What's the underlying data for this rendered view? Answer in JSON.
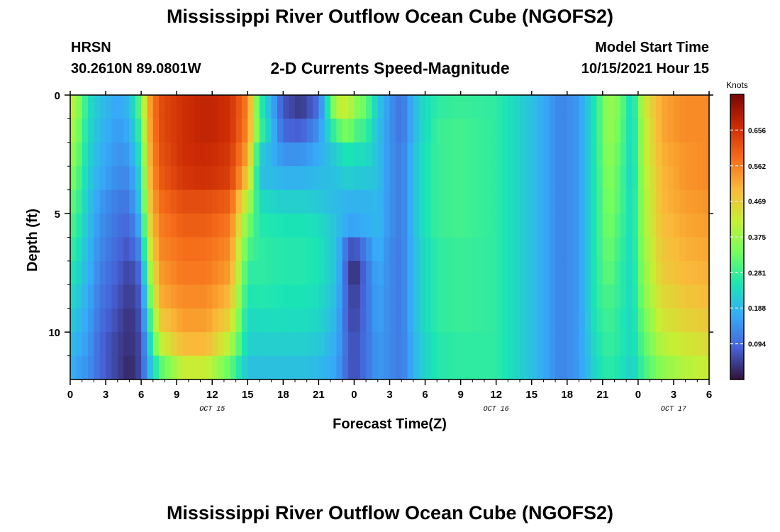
{
  "header": {
    "title": "Mississippi River Outflow Ocean Cube (NGOFS2)",
    "station": "HRSN",
    "coords": "30.2610N  89.0801W",
    "subtitle": "2-D Currents Speed-Magnitude",
    "model_start_label": "Model Start Time",
    "model_start_value": "10/15/2021 Hour 15"
  },
  "footer": {
    "title": "Mississippi River Outflow Ocean Cube (NGOFS2)"
  },
  "chart_data": {
    "type": "heatmap",
    "xlabel": "Forecast Time(Z)",
    "ylabel": "Depth (ft)",
    "colorbar_label": "Knots",
    "x_ticks": [
      "0",
      "3",
      "6",
      "9",
      "12",
      "15",
      "18",
      "21",
      "0",
      "3",
      "6",
      "9",
      "12",
      "15",
      "18",
      "21",
      "0",
      "3",
      "6"
    ],
    "date_labels": [
      {
        "label": "OCT 15",
        "at_hour": 12
      },
      {
        "label": "OCT 16",
        "at_hour": 36
      },
      {
        "label": "OCT 17",
        "at_hour": 51
      }
    ],
    "x_range_hours": [
      0,
      54
    ],
    "y_ticks": [
      "0",
      "5",
      "10"
    ],
    "y_range_ft": [
      0,
      12
    ],
    "colorbar_ticks": [
      "0.656",
      "0.562",
      "0.469",
      "0.375",
      "0.281",
      "0.188",
      "0.094"
    ],
    "colorbar_range": [
      0,
      0.75
    ],
    "colormap": [
      "#30123b",
      "#4662d7",
      "#36aaf9",
      "#1ae4b6",
      "#72fe5e",
      "#c7ef34",
      "#faba39",
      "#f66b19",
      "#cb2a04",
      "#7a0403"
    ],
    "depths_ft": [
      0,
      1,
      2,
      3,
      4,
      5,
      6,
      7,
      8,
      9,
      10,
      11
    ],
    "hour_keyframes": [
      0,
      0.5,
      1.5,
      2.5,
      4,
      5,
      6,
      6.5,
      7.5,
      9.5,
      11.5,
      13.5,
      15,
      16,
      18,
      19.5,
      21,
      22.5,
      23.5,
      24,
      25,
      26,
      27,
      28,
      29.5,
      31,
      33,
      36,
      39,
      41.5,
      43,
      44.5,
      45.5,
      46.5,
      47.5,
      48.5,
      50,
      52,
      54
    ],
    "speed_knots": [
      [
        0.42,
        0.38,
        0.25,
        0.2,
        0.16,
        0.19,
        0.33,
        0.5,
        0.62,
        0.66,
        0.68,
        0.66,
        0.56,
        0.28,
        0.07,
        0.04,
        0.1,
        0.4,
        0.42,
        0.36,
        0.32,
        0.21,
        0.14,
        0.1,
        0.22,
        0.27,
        0.28,
        0.27,
        0.2,
        0.12,
        0.15,
        0.27,
        0.38,
        0.33,
        0.22,
        0.42,
        0.52,
        0.55,
        0.55
      ],
      [
        0.4,
        0.36,
        0.24,
        0.19,
        0.15,
        0.17,
        0.3,
        0.49,
        0.62,
        0.66,
        0.68,
        0.66,
        0.55,
        0.3,
        0.09,
        0.08,
        0.14,
        0.3,
        0.35,
        0.3,
        0.28,
        0.2,
        0.14,
        0.1,
        0.22,
        0.28,
        0.29,
        0.27,
        0.2,
        0.12,
        0.15,
        0.27,
        0.38,
        0.32,
        0.22,
        0.4,
        0.52,
        0.55,
        0.55
      ],
      [
        0.38,
        0.34,
        0.23,
        0.18,
        0.14,
        0.15,
        0.27,
        0.48,
        0.61,
        0.66,
        0.67,
        0.65,
        0.52,
        0.22,
        0.14,
        0.14,
        0.17,
        0.22,
        0.26,
        0.24,
        0.24,
        0.2,
        0.14,
        0.11,
        0.23,
        0.28,
        0.29,
        0.27,
        0.2,
        0.12,
        0.15,
        0.27,
        0.37,
        0.31,
        0.22,
        0.4,
        0.51,
        0.54,
        0.55
      ],
      [
        0.35,
        0.32,
        0.22,
        0.17,
        0.13,
        0.13,
        0.24,
        0.47,
        0.6,
        0.65,
        0.66,
        0.64,
        0.48,
        0.2,
        0.18,
        0.18,
        0.19,
        0.2,
        0.22,
        0.21,
        0.21,
        0.2,
        0.14,
        0.11,
        0.23,
        0.28,
        0.29,
        0.27,
        0.2,
        0.12,
        0.15,
        0.27,
        0.36,
        0.3,
        0.22,
        0.39,
        0.5,
        0.54,
        0.55
      ],
      [
        0.32,
        0.3,
        0.21,
        0.15,
        0.11,
        0.11,
        0.22,
        0.45,
        0.58,
        0.62,
        0.62,
        0.6,
        0.4,
        0.24,
        0.22,
        0.22,
        0.21,
        0.19,
        0.18,
        0.18,
        0.18,
        0.19,
        0.14,
        0.11,
        0.23,
        0.28,
        0.29,
        0.27,
        0.2,
        0.12,
        0.15,
        0.27,
        0.35,
        0.3,
        0.23,
        0.38,
        0.5,
        0.53,
        0.54
      ],
      [
        0.3,
        0.28,
        0.2,
        0.14,
        0.1,
        0.09,
        0.18,
        0.42,
        0.56,
        0.6,
        0.6,
        0.57,
        0.34,
        0.26,
        0.25,
        0.25,
        0.24,
        0.2,
        0.16,
        0.16,
        0.17,
        0.19,
        0.14,
        0.11,
        0.23,
        0.28,
        0.29,
        0.27,
        0.2,
        0.12,
        0.15,
        0.27,
        0.34,
        0.29,
        0.23,
        0.38,
        0.49,
        0.52,
        0.53
      ],
      [
        0.28,
        0.26,
        0.19,
        0.13,
        0.09,
        0.07,
        0.14,
        0.38,
        0.55,
        0.58,
        0.58,
        0.55,
        0.3,
        0.27,
        0.26,
        0.26,
        0.25,
        0.2,
        0.08,
        0.06,
        0.12,
        0.18,
        0.13,
        0.11,
        0.22,
        0.27,
        0.28,
        0.27,
        0.2,
        0.12,
        0.15,
        0.27,
        0.33,
        0.28,
        0.23,
        0.37,
        0.48,
        0.51,
        0.52
      ],
      [
        0.26,
        0.24,
        0.18,
        0.12,
        0.08,
        0.05,
        0.1,
        0.33,
        0.53,
        0.57,
        0.57,
        0.53,
        0.27,
        0.27,
        0.26,
        0.26,
        0.25,
        0.2,
        0.06,
        0.02,
        0.1,
        0.17,
        0.13,
        0.11,
        0.22,
        0.27,
        0.28,
        0.27,
        0.2,
        0.12,
        0.15,
        0.27,
        0.32,
        0.27,
        0.23,
        0.36,
        0.47,
        0.5,
        0.51
      ],
      [
        0.24,
        0.22,
        0.17,
        0.11,
        0.07,
        0.04,
        0.08,
        0.27,
        0.51,
        0.55,
        0.55,
        0.5,
        0.25,
        0.26,
        0.25,
        0.25,
        0.24,
        0.19,
        0.07,
        0.04,
        0.1,
        0.16,
        0.13,
        0.11,
        0.22,
        0.27,
        0.28,
        0.27,
        0.2,
        0.12,
        0.15,
        0.27,
        0.3,
        0.27,
        0.23,
        0.35,
        0.45,
        0.48,
        0.5
      ],
      [
        0.22,
        0.2,
        0.16,
        0.1,
        0.06,
        0.03,
        0.07,
        0.22,
        0.47,
        0.53,
        0.53,
        0.46,
        0.23,
        0.24,
        0.24,
        0.24,
        0.23,
        0.18,
        0.07,
        0.05,
        0.1,
        0.16,
        0.13,
        0.11,
        0.22,
        0.27,
        0.28,
        0.27,
        0.2,
        0.12,
        0.15,
        0.26,
        0.29,
        0.26,
        0.23,
        0.33,
        0.43,
        0.46,
        0.48
      ],
      [
        0.2,
        0.18,
        0.15,
        0.09,
        0.05,
        0.03,
        0.06,
        0.18,
        0.4,
        0.5,
        0.5,
        0.4,
        0.22,
        0.22,
        0.22,
        0.22,
        0.21,
        0.17,
        0.08,
        0.06,
        0.1,
        0.15,
        0.13,
        0.11,
        0.21,
        0.26,
        0.27,
        0.27,
        0.2,
        0.12,
        0.15,
        0.25,
        0.28,
        0.26,
        0.23,
        0.31,
        0.4,
        0.43,
        0.45
      ],
      [
        0.18,
        0.16,
        0.14,
        0.09,
        0.05,
        0.02,
        0.06,
        0.16,
        0.3,
        0.42,
        0.42,
        0.32,
        0.2,
        0.2,
        0.2,
        0.2,
        0.19,
        0.16,
        0.08,
        0.06,
        0.1,
        0.15,
        0.13,
        0.11,
        0.21,
        0.26,
        0.27,
        0.27,
        0.2,
        0.12,
        0.15,
        0.24,
        0.27,
        0.25,
        0.22,
        0.29,
        0.36,
        0.4,
        0.42
      ]
    ]
  }
}
